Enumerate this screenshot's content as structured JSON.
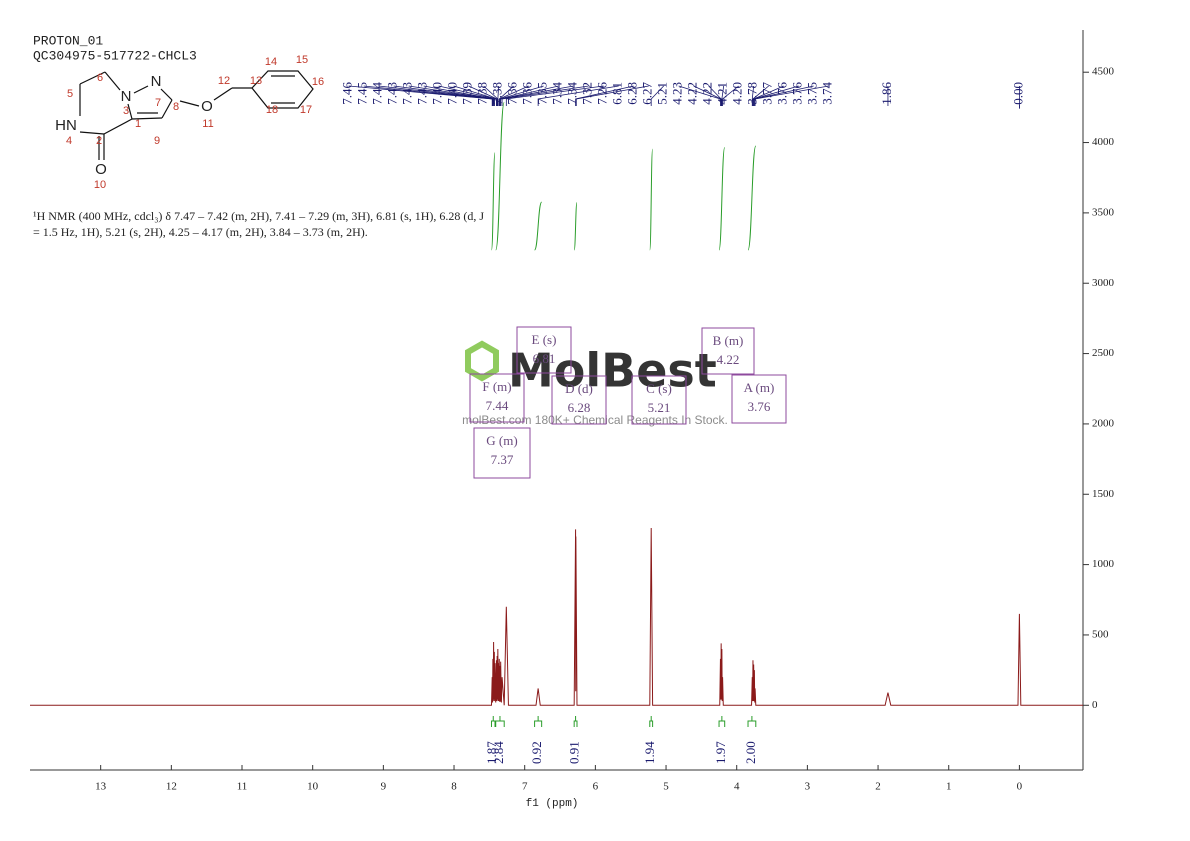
{
  "chart_data": {
    "type": "line",
    "title": "PROTON_01",
    "subtitle": "QC304975-517722-CHCL3",
    "description": [
      "¹H NMR (400 MHz, cdcl₃) δ 7.47 – 7.42 (m, 2H), 7.41 – 7.29 (m, 3H), 6.81 (s, 1H), 6.28 (d, J",
      "= 1.5 Hz, 1H), 5.21 (s, 2H), 4.25 – 4.17 (m, 2H), 3.84 – 3.73 (m, 2H)."
    ],
    "x_label": "f1 (ppm)",
    "color": "#8b1a1a",
    "x": [
      14,
      7.47,
      7.46,
      7.455,
      7.45,
      7.445,
      7.44,
      7.435,
      7.43,
      7.425,
      7.42,
      7.41,
      7.4,
      7.395,
      7.39,
      7.385,
      7.38,
      7.375,
      7.37,
      7.365,
      7.36,
      7.355,
      7.35,
      7.345,
      7.34,
      7.33,
      7.32,
      7.29,
      7.26,
      7.23,
      6.84,
      6.81,
      6.78,
      6.3,
      6.28,
      6.278,
      6.276,
      6.26,
      5.23,
      5.21,
      5.19,
      4.24,
      4.23,
      4.225,
      4.22,
      4.215,
      4.21,
      4.205,
      4.2,
      4.19,
      3.79,
      3.78,
      3.775,
      3.77,
      3.765,
      3.76,
      3.755,
      3.75,
      3.745,
      3.74,
      3.73,
      1.9,
      1.86,
      1.82,
      0.02,
      0,
      -0.02,
      -0.9
    ],
    "values": [
      0,
      0,
      200,
      20,
      330,
      30,
      450,
      40,
      380,
      30,
      300,
      20,
      320,
      30,
      350,
      40,
      400,
      30,
      300,
      30,
      330,
      25,
      280,
      25,
      310,
      20,
      200,
      0,
      700,
      0,
      0,
      120,
      0,
      0,
      1250,
      100,
      1200,
      0,
      0,
      1260,
      0,
      0,
      330,
      40,
      440,
      40,
      400,
      30,
      200,
      0,
      0,
      200,
      30,
      320,
      30,
      290,
      30,
      250,
      20,
      120,
      0,
      0,
      90,
      0,
      0,
      650,
      0,
      0
    ],
    "xlim": [
      14,
      -0.9
    ],
    "xticks": [
      13,
      12,
      11,
      10,
      9,
      8,
      7,
      6,
      5,
      4,
      3,
      2,
      1,
      0
    ],
    "ylim": [
      -460,
      4800
    ],
    "yticks": [
      0,
      500,
      1000,
      1500,
      2000,
      2500,
      3000,
      3500,
      4000,
      4500
    ],
    "peak_labels": [
      7.46,
      7.45,
      7.44,
      7.43,
      7.43,
      7.43,
      {
        "value": 7.4,
        "label": "7.40"
      },
      {
        "value": 7.4,
        "label": "7.40"
      },
      7.39,
      7.38,
      7.38,
      7.36,
      7.36,
      7.35,
      7.34,
      7.34,
      7.32,
      7.26,
      6.81,
      6.28,
      6.27,
      5.21,
      4.23,
      4.22,
      4.22,
      4.21,
      {
        "value": 4.2,
        "label": "4.20"
      },
      3.78,
      3.77,
      3.76,
      3.76,
      3.75,
      3.74,
      1.86,
      {
        "value": 0,
        "label": "-0.00"
      }
    ],
    "integrals": [
      {
        "value": 1.87,
        "range": [
          7.47,
          7.42
        ]
      },
      {
        "value": 2.84,
        "range": [
          7.41,
          7.29
        ]
      },
      {
        "value": 0.92,
        "range": [
          6.86,
          6.76
        ]
      },
      {
        "value": 0.91,
        "range": [
          6.3,
          6.26
        ]
      },
      {
        "value": 1.94,
        "range": [
          5.23,
          5.19
        ]
      },
      {
        "value": 1.97,
        "range": [
          4.25,
          4.17
        ]
      },
      {
        "value": 2,
        "label": "2.00",
        "range": [
          3.84,
          3.73
        ]
      }
    ],
    "multiplets": [
      {
        "label": "E (s)",
        "value": 6.81
      },
      {
        "label": "F (m)",
        "value": 7.44
      },
      {
        "label": "D (d)",
        "value": 6.28
      },
      {
        "label": "C (s)",
        "value": 5.21
      },
      {
        "label": "B (m)",
        "value": 4.22
      },
      {
        "label": "A (m)",
        "value": 3.76
      },
      {
        "label": "G (m)",
        "value": 7.37
      }
    ]
  },
  "molecule": {
    "atoms": [
      "N",
      "N",
      "HN",
      "O",
      "O"
    ],
    "numbers": [
      1,
      2,
      3,
      4,
      5,
      6,
      7,
      8,
      9,
      10,
      11,
      12,
      13,
      14,
      15,
      16,
      17,
      18
    ]
  },
  "watermark": {
    "name": "MolBest",
    "tagline": "molBest.com 180K+ Chemical Reagents In Stock."
  }
}
